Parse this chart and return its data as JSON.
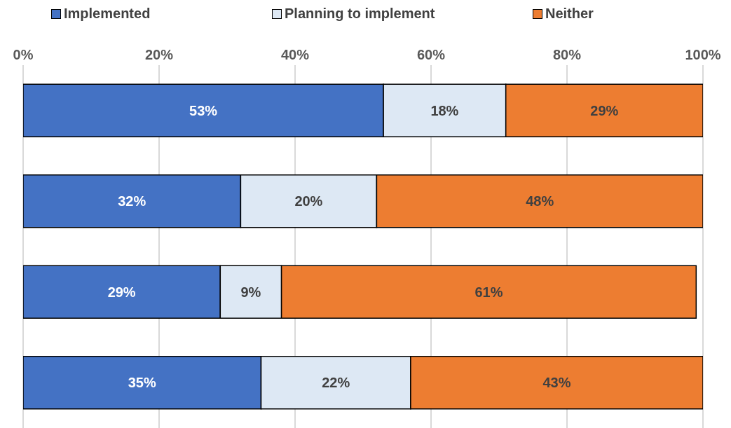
{
  "chart_data": {
    "type": "bar",
    "orientation": "horizontal",
    "stacked": true,
    "categories": [
      null,
      null,
      null,
      null
    ],
    "series": [
      {
        "name": "Implemented",
        "color": "#4472c4",
        "values": [
          53,
          32,
          29,
          35
        ],
        "value_labels": [
          "53%",
          "32%",
          "29%",
          "35%"
        ]
      },
      {
        "name": "Planning to implement",
        "color": "#dde8f4",
        "values": [
          18,
          20,
          9,
          22
        ],
        "value_labels": [
          "18%",
          "20%",
          "9%",
          "22%"
        ]
      },
      {
        "name": "Neither",
        "color": "#ed7d31",
        "values": [
          29,
          48,
          61,
          43
        ],
        "value_labels": [
          "29%",
          "48%",
          "61%",
          "43%"
        ]
      }
    ],
    "xlim": [
      0,
      100
    ],
    "xticks": [
      {
        "value": 0,
        "label": "0%"
      },
      {
        "value": 20,
        "label": "20%"
      },
      {
        "value": 40,
        "label": "40%"
      },
      {
        "value": 60,
        "label": "60%"
      },
      {
        "value": 80,
        "label": "80%"
      },
      {
        "value": 100,
        "label": "100%"
      }
    ],
    "grid": "x",
    "legend": "top"
  }
}
